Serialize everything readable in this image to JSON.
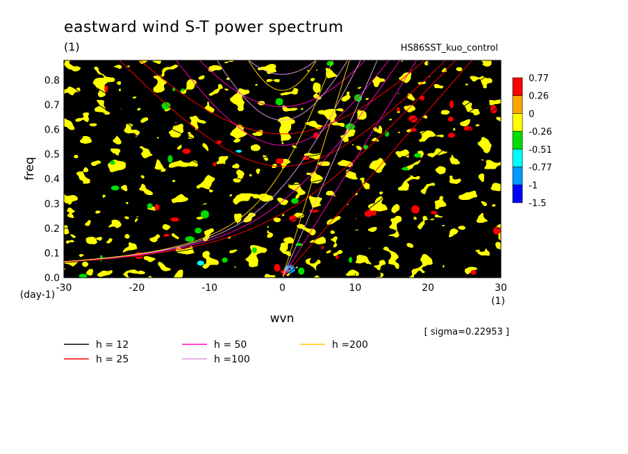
{
  "header": {
    "title": "eastward wind S-T power spectrum",
    "units": "(1)",
    "experiment": "HS86SST_kuo_control"
  },
  "chart_data": {
    "type": "heatmap",
    "title": "eastward wind S-T power spectrum",
    "xlabel": "wvn",
    "ylabel": "freq",
    "x_units": "(1)",
    "y_units": "(day-1)",
    "xlim": [
      -30,
      30
    ],
    "ylim": [
      0,
      0.88
    ],
    "x_ticks": [
      -30,
      -20,
      -10,
      0,
      10,
      20,
      30
    ],
    "x_tick_labels": [
      "-30",
      "-20",
      "-10",
      "0",
      "10",
      "20",
      "30"
    ],
    "y_ticks": [
      0.0,
      0.1,
      0.2,
      0.3,
      0.4,
      0.5,
      0.6,
      0.7,
      0.8
    ],
    "y_tick_labels": [
      "0.0",
      "0.1",
      "0.2",
      "0.3",
      "0.4",
      "0.5",
      "0.6",
      "0.7",
      "0.8"
    ],
    "field_description": "normalized log power: mostly between -0.26 and 0.26, scattered isolated maxima above 0.26 and minima below -0.26",
    "colorbar": {
      "levels": [
        "0.77",
        "0.26",
        "0",
        "-0.26",
        "-0.51",
        "-0.77",
        "-1",
        "-1.5"
      ],
      "colors": [
        "#ff0000",
        "#ffa500",
        "#ffff00",
        "#00dd00",
        "#00ffff",
        "#0099ff",
        "#0000ff"
      ]
    },
    "sigma_note": "[ sigma=0.22953 ]",
    "dispersion_curves": [
      {
        "name": "h = 12",
        "color": "#000000"
      },
      {
        "name": "h = 25",
        "color": "#ff0000"
      },
      {
        "name": "h = 50",
        "color": "#ff00bb"
      },
      {
        "name": "h =100",
        "color": "#dd99dd"
      },
      {
        "name": "h =200",
        "color": "#ffcc00"
      }
    ]
  }
}
